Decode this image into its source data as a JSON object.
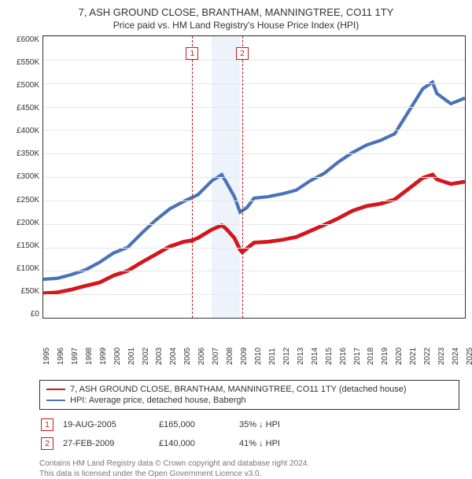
{
  "title": "7, ASH GROUND CLOSE, BRANTHAM, MANNINGTREE, CO11 1TY",
  "subtitle": "Price paid vs. HM Land Registry's House Price Index (HPI)",
  "chart": {
    "type": "line",
    "ymin": 0,
    "ymax": 600000,
    "ytick_step": 50000,
    "ytick_labels": [
      "£0",
      "£50K",
      "£100K",
      "£150K",
      "£200K",
      "£250K",
      "£300K",
      "£350K",
      "£400K",
      "£450K",
      "£500K",
      "£550K",
      "£600K"
    ],
    "xmin": 1995,
    "xmax": 2025,
    "xtick_step": 1,
    "xtick_labels": [
      "1995",
      "1996",
      "1997",
      "1998",
      "1999",
      "2000",
      "2001",
      "2002",
      "2003",
      "2004",
      "2005",
      "2006",
      "2007",
      "2008",
      "2009",
      "2010",
      "2011",
      "2012",
      "2013",
      "2014",
      "2015",
      "2016",
      "2017",
      "2018",
      "2019",
      "2020",
      "2021",
      "2022",
      "2023",
      "2024",
      "2025"
    ],
    "grid_color": "#e6e6e6",
    "axis_color": "#333333",
    "background_color": "#ffffff",
    "shaded_band": {
      "start": 2007,
      "end": 2009,
      "color": "#eef3fb"
    },
    "event_lines": [
      {
        "year": 2005.6,
        "color": "#d4161c",
        "dash": "2,3"
      },
      {
        "year": 2009.16,
        "color": "#d4161c",
        "dash": "2,3"
      }
    ],
    "event_markers": [
      {
        "n": "1",
        "year": 2005.6,
        "box_color": "#d4161c",
        "text_color": "#d4161c"
      },
      {
        "n": "2",
        "year": 2009.16,
        "box_color": "#d4161c",
        "text_color": "#d4161c"
      }
    ],
    "event_dots": [
      {
        "year": 2005.6,
        "value": 165000,
        "color": "#d4161c"
      },
      {
        "year": 2009.16,
        "value": 140000,
        "color": "#d4161c"
      }
    ],
    "series": [
      {
        "name": "property",
        "label": "7, ASH GROUND CLOSE, BRANTHAM, MANNINGTREE, CO11 1TY (detached house)",
        "color": "#d4161c",
        "width": 1.6,
        "points": [
          [
            1995,
            52000
          ],
          [
            1996,
            54000
          ],
          [
            1997,
            60000
          ],
          [
            1998,
            68000
          ],
          [
            1999,
            75000
          ],
          [
            2000,
            90000
          ],
          [
            2001,
            100000
          ],
          [
            2002,
            118000
          ],
          [
            2003,
            135000
          ],
          [
            2004,
            152000
          ],
          [
            2005,
            162000
          ],
          [
            2005.6,
            165000
          ],
          [
            2006,
            170000
          ],
          [
            2007,
            188000
          ],
          [
            2007.7,
            197000
          ],
          [
            2008,
            190000
          ],
          [
            2008.6,
            170000
          ],
          [
            2009,
            145000
          ],
          [
            2009.16,
            140000
          ],
          [
            2009.5,
            148000
          ],
          [
            2010,
            160000
          ],
          [
            2011,
            162000
          ],
          [
            2012,
            166000
          ],
          [
            2013,
            172000
          ],
          [
            2014,
            185000
          ],
          [
            2015,
            198000
          ],
          [
            2016,
            212000
          ],
          [
            2017,
            228000
          ],
          [
            2018,
            238000
          ],
          [
            2019,
            243000
          ],
          [
            2020,
            252000
          ],
          [
            2021,
            275000
          ],
          [
            2022,
            298000
          ],
          [
            2022.7,
            305000
          ],
          [
            2023,
            295000
          ],
          [
            2024,
            285000
          ],
          [
            2025,
            290000
          ]
        ]
      },
      {
        "name": "hpi",
        "label": "HPI: Average price, detached house, Babergh",
        "color": "#4a72b8",
        "width": 1.4,
        "points": [
          [
            1995,
            82000
          ],
          [
            1996,
            84000
          ],
          [
            1997,
            92000
          ],
          [
            1998,
            102000
          ],
          [
            1999,
            118000
          ],
          [
            2000,
            138000
          ],
          [
            2001,
            150000
          ],
          [
            2002,
            180000
          ],
          [
            2003,
            208000
          ],
          [
            2004,
            232000
          ],
          [
            2005,
            248000
          ],
          [
            2006,
            262000
          ],
          [
            2007,
            292000
          ],
          [
            2007.7,
            305000
          ],
          [
            2008,
            290000
          ],
          [
            2008.6,
            258000
          ],
          [
            2009,
            225000
          ],
          [
            2009.5,
            235000
          ],
          [
            2010,
            255000
          ],
          [
            2011,
            258000
          ],
          [
            2012,
            264000
          ],
          [
            2013,
            272000
          ],
          [
            2014,
            292000
          ],
          [
            2015,
            308000
          ],
          [
            2016,
            332000
          ],
          [
            2017,
            352000
          ],
          [
            2018,
            368000
          ],
          [
            2019,
            378000
          ],
          [
            2020,
            392000
          ],
          [
            2021,
            440000
          ],
          [
            2022,
            488000
          ],
          [
            2022.7,
            502000
          ],
          [
            2023,
            478000
          ],
          [
            2024,
            456000
          ],
          [
            2025,
            468000
          ]
        ]
      }
    ]
  },
  "legend": [
    {
      "color": "#d4161c",
      "label": "7, ASH GROUND CLOSE, BRANTHAM, MANNINGTREE, CO11 1TY (detached house)"
    },
    {
      "color": "#4a72b8",
      "label": "HPI: Average price, detached house, Babergh"
    }
  ],
  "events": [
    {
      "n": "1",
      "date": "19-AUG-2005",
      "price": "£165,000",
      "delta": "35% ↓ HPI",
      "box_color": "#d4161c"
    },
    {
      "n": "2",
      "date": "27-FEB-2009",
      "price": "£140,000",
      "delta": "41% ↓ HPI",
      "box_color": "#d4161c"
    }
  ],
  "footnotes": [
    "Contains HM Land Registry data © Crown copyright and database right 2024.",
    "This data is licensed under the Open Government Licence v3.0."
  ]
}
